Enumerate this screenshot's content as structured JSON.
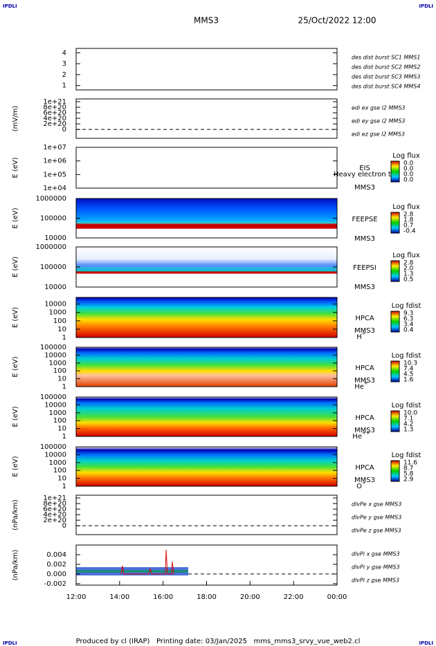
{
  "corner_labels": [
    "IPDLI",
    "IPDLI",
    "IPDLI",
    "IPDLI"
  ],
  "header": {
    "title": "MMS3",
    "date": "25/Oct/2022 12:00"
  },
  "footer": "Produced by cl (IRAP)   Printing date: 03/Jan/2025   mms_mms3_srvy_vue_web2.cl",
  "x_axis": {
    "ticks": [
      "12:00",
      "14:00",
      "16:00",
      "18:00",
      "20:00",
      "22:00",
      "00:00"
    ]
  },
  "chart_data": [
    {
      "type": "line",
      "ylim": [
        0.6,
        4.4
      ],
      "yticks": [
        1,
        2,
        3,
        4
      ],
      "legend": [
        {
          "name": "des dist burst SC1 MMS1",
          "color": "#0000cc"
        },
        {
          "name": "des dist burst SC2 MMS2",
          "color": "#cc00cc"
        },
        {
          "name": "des dist burst SC3 MMS3",
          "color": "#cc0000"
        },
        {
          "name": "des dist burst SC4 MMS4",
          "color": "#00b000"
        }
      ]
    },
    {
      "type": "line",
      "ylabel": "(mV/m)",
      "ylim": [
        -3.2e+20,
        1.1e+21
      ],
      "zero_line": true,
      "yticks": [
        {
          "value": 1e+21,
          "label": "1e+21"
        },
        {
          "value": 8e+20,
          "label": "8e+20"
        },
        {
          "value": 6e+20,
          "label": "6e+20"
        },
        {
          "value": 4e+20,
          "label": "4e+20"
        },
        {
          "value": 2e+20,
          "label": "2e+20"
        },
        0
      ],
      "legend": [
        {
          "name": "edi ex gse l2 MMS3",
          "color": "#cc0000"
        },
        {
          "name": "edi ey gse l2 MMS3",
          "color": "#00b000"
        },
        {
          "name": "edi ez gse l2 MMS3",
          "color": "#0000cc"
        }
      ]
    },
    {
      "type": "spectrogram",
      "ylabel": "E (eV)",
      "log": true,
      "ylim": [
        10000,
        10000000
      ],
      "yticks": [
        {
          "value": 10000000,
          "label": "1e+07"
        },
        {
          "value": 1000000,
          "label": "1e+06"
        },
        {
          "value": 100000,
          "label": "1e+05"
        },
        {
          "value": 10000,
          "label": "1e+04"
        }
      ],
      "instrument": [
        "EIS",
        "MMS3"
      ],
      "overlay": "Heavy electron to",
      "colorbar": {
        "title": "Log flux",
        "labels": [
          "0.0",
          "0.0",
          "0.0",
          "0.0"
        ]
      }
    },
    {
      "type": "spectrogram",
      "ylabel": "E (eV)",
      "log": true,
      "ylim": [
        10000,
        1000000
      ],
      "yticks": [
        1000000,
        100000,
        10000
      ],
      "instrument": [
        "FEEPSE",
        "MMS3"
      ],
      "colorbar": {
        "title": "Log flux",
        "labels": [
          "2.8",
          "1.8",
          "0.7",
          "-0.4"
        ]
      }
    },
    {
      "type": "spectrogram",
      "ylabel": "E (eV)",
      "log": true,
      "ylim": [
        10000,
        1000000
      ],
      "yticks": [
        1000000,
        100000,
        10000
      ],
      "instrument": [
        "FEEPSI",
        "MMS3"
      ],
      "colorbar": {
        "title": "Log flux",
        "labels": [
          "2.8",
          "2.0",
          "1.3",
          "0.5"
        ]
      }
    },
    {
      "type": "spectrogram",
      "ylabel": "E (eV)",
      "log": true,
      "ylim": [
        1,
        63000
      ],
      "yticks": [
        10000,
        1000,
        100,
        10,
        1
      ],
      "instrument": [
        "HPCA",
        "MMS3"
      ],
      "species": {
        "base": "H",
        "sup": "+"
      },
      "colorbar": {
        "title": "Log fdist",
        "labels": [
          "9.3",
          "6.3",
          "3.4",
          "0.4"
        ]
      }
    },
    {
      "type": "spectrogram",
      "ylabel": "E (eV)",
      "log": true,
      "ylim": [
        1,
        100000
      ],
      "yticks": [
        100000,
        10000,
        1000,
        100,
        10,
        1
      ],
      "instrument": [
        "HPCA",
        "MMS3"
      ],
      "species": {
        "base": "He",
        "sup": "+"
      },
      "colorbar": {
        "title": "Log fdist",
        "labels": [
          "10.3",
          "7.4",
          "4.5",
          "1.6"
        ]
      }
    },
    {
      "type": "spectrogram",
      "ylabel": "E (eV)",
      "log": true,
      "ylim": [
        1,
        100000
      ],
      "yticks": [
        100000,
        10000,
        1000,
        100,
        10,
        1
      ],
      "instrument": [
        "HPCA",
        "MMS3"
      ],
      "species": {
        "base": "He",
        "sup": "++"
      },
      "colorbar": {
        "title": "Log fdist",
        "labels": [
          "10.0",
          "7.1",
          "4.2",
          "1.3"
        ]
      }
    },
    {
      "type": "spectrogram",
      "ylabel": "E (eV)",
      "log": true,
      "ylim": [
        1,
        100000
      ],
      "yticks": [
        100000,
        10000,
        1000,
        100,
        10,
        1
      ],
      "instrument": [
        "HPCA",
        "MMS3"
      ],
      "species": {
        "base": "O",
        "sup": "+"
      },
      "colorbar": {
        "title": "Log fdist",
        "labels": [
          "11.6",
          "8.7",
          "5.8",
          "2.9"
        ]
      }
    },
    {
      "type": "line",
      "ylabel": "(nPa/km)",
      "ylim": [
        -3.2e+20,
        1.1e+21
      ],
      "zero_line": true,
      "yticks": [
        {
          "value": 1e+21,
          "label": "1e+21"
        },
        {
          "value": 8e+20,
          "label": "8e+20"
        },
        {
          "value": 6e+20,
          "label": "6e+20"
        },
        {
          "value": 4e+20,
          "label": "4e+20"
        },
        {
          "value": 2e+20,
          "label": "2e+20"
        },
        0
      ],
      "legend": [
        {
          "name": "dlvPe x gse MMS3",
          "color": "#cc0000"
        },
        {
          "name": "dlvPe y gse MMS3",
          "color": "#00b000"
        },
        {
          "name": "dlvPe z gse MMS3",
          "color": "#0000cc"
        }
      ]
    },
    {
      "type": "line",
      "ylabel": "(nPa/km)",
      "ylim": [
        -0.0023,
        0.006
      ],
      "zero_line": true,
      "yticks": [
        0.004,
        0.002,
        {
          "value": 0,
          "label": "0.000"
        },
        -0.002
      ],
      "legend": [
        {
          "name": "dlvPi x gse MMS3",
          "color": "#cc0000"
        },
        {
          "name": "dlvPi y gse MMS3",
          "color": "#00b000"
        },
        {
          "name": "dlvPi z gse MMS3",
          "color": "#0000cc"
        }
      ]
    }
  ]
}
